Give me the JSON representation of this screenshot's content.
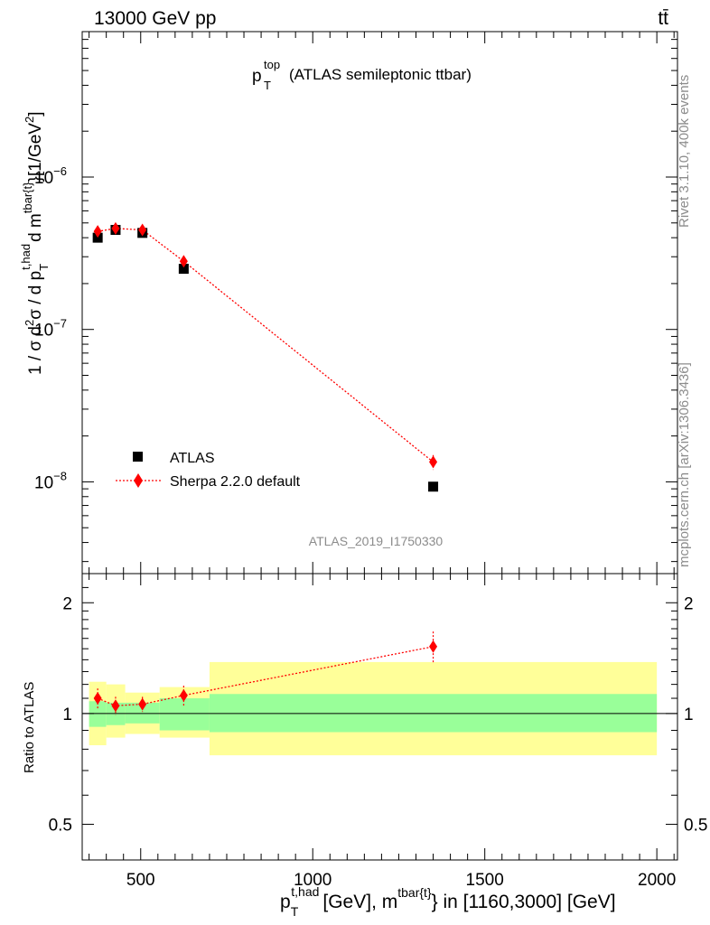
{
  "header": {
    "left": "13000 GeV pp",
    "right": "tt̄"
  },
  "title": {
    "main": "p",
    "sup": "top",
    "sub": "T",
    "rest": "(ATLAS semileptonic ttbar)"
  },
  "side_labels": {
    "rivet": "Rivet 3.1.10,  400k events",
    "mcplots": "mcplots.cern.ch [arXiv:1306.3436]"
  },
  "watermark": "ATLAS_2019_I1750330",
  "legend": {
    "data_label": "ATLAS",
    "mc_label": "Sherpa 2.2.0 default"
  },
  "axes": {
    "ylabel_main": "1 / σ d²σ / d p_T^{t,had} d m^{tbar{t}} [1/GeV²]",
    "ylabel_ratio": "Ratio to ATLAS",
    "xlabel": "p_T^{t,had} [GeV], m^{tbar{t}} in [1160,3000] [GeV]",
    "xlabel_parts": {
      "p": "p",
      "p_sub": "T",
      "p_sup": "t,had",
      "mid": "[GeV], m",
      "m_sup": "tbar{t}",
      "end": "} in [1160,3000] [GeV]"
    },
    "ylabel_parts": {
      "a": "1 / σ d",
      "a_sup": "2",
      "b": "σ / d p",
      "b_sub": "T",
      "b_sup": "t,had",
      "c": "d m",
      "c_sup": "tbar{t}",
      "d": "}[1/GeV",
      "d_sup": "2",
      "e": "]"
    },
    "x_ticks": [
      "500",
      "1000",
      "1500",
      "2000"
    ],
    "y_ticks_main": [
      {
        "base": "10",
        "exp": "−6"
      },
      {
        "base": "10",
        "exp": "−7"
      },
      {
        "base": "10",
        "exp": "−8"
      }
    ],
    "y_ticks_ratio": [
      "0.5",
      "1",
      "2"
    ]
  },
  "colors": {
    "data": "#000000",
    "mc": "#ff0000",
    "band_inner": "#99ff99",
    "band_outer": "#ffff99"
  },
  "chart_data": [
    {
      "type": "scatter",
      "panel": "main",
      "xlim": [
        330,
        2060
      ],
      "ylim": [
        2.5e-09,
        9e-06
      ],
      "yscale": "log",
      "series": [
        {
          "name": "ATLAS",
          "marker": "square",
          "x": [
            375,
            427,
            505,
            625,
            1350
          ],
          "y": [
            4e-07,
            4.5e-07,
            4.3e-07,
            2.5e-07,
            9.3e-09
          ]
        },
        {
          "name": "Sherpa 2.2.0 default",
          "marker": "diamond",
          "x": [
            375,
            427,
            505,
            625,
            1350
          ],
          "y": [
            4.4e-07,
            4.6e-07,
            4.5e-07,
            2.8e-07,
            1.35e-08
          ],
          "yerr": [
            3e-08,
            3e-08,
            2.5e-08,
            1.5e-08,
            1.5e-09
          ]
        }
      ]
    },
    {
      "type": "scatter",
      "panel": "ratio",
      "xlim": [
        330,
        2060
      ],
      "ylim": [
        0.4,
        2.4
      ],
      "yscale": "log",
      "reference_line": 1,
      "bands": [
        {
          "x0": 350,
          "x1": 400,
          "inner": [
            0.92,
            1.08
          ],
          "outer": [
            0.82,
            1.22
          ]
        },
        {
          "x0": 400,
          "x1": 455,
          "inner": [
            0.93,
            1.07
          ],
          "outer": [
            0.86,
            1.2
          ]
        },
        {
          "x0": 455,
          "x1": 555,
          "inner": [
            0.94,
            1.07
          ],
          "outer": [
            0.88,
            1.14
          ]
        },
        {
          "x0": 555,
          "x1": 700,
          "inner": [
            0.9,
            1.1
          ],
          "outer": [
            0.86,
            1.18
          ]
        },
        {
          "x0": 700,
          "x1": 2000,
          "inner": [
            0.89,
            1.13
          ],
          "outer": [
            0.77,
            1.38
          ]
        }
      ],
      "series": [
        {
          "name": "Sherpa 2.2.0 default",
          "marker": "diamond",
          "x": [
            375,
            427,
            505,
            625,
            1350
          ],
          "y": [
            1.1,
            1.05,
            1.06,
            1.12,
            1.52
          ],
          "yerr": [
            0.07,
            0.06,
            0.05,
            0.07,
            0.15
          ]
        }
      ]
    }
  ]
}
